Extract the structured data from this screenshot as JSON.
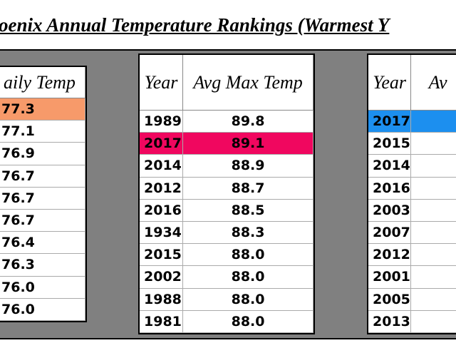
{
  "header": {
    "title": "oenix Annual Temperature Rankings (Warmest Y"
  },
  "tables": [
    {
      "columns": [
        "aily Temp"
      ],
      "rows": [
        [
          "77.3"
        ],
        [
          "77.1"
        ],
        [
          "76.9"
        ],
        [
          "76.7"
        ],
        [
          "76.7"
        ],
        [
          "76.7"
        ],
        [
          "76.4"
        ],
        [
          "76.3"
        ],
        [
          "76.0"
        ],
        [
          "76.0"
        ]
      ]
    },
    {
      "columns": [
        "Year",
        "Avg Max Temp"
      ],
      "rows": [
        [
          "1989",
          "89.8"
        ],
        [
          "2017",
          "89.1"
        ],
        [
          "2014",
          "88.9"
        ],
        [
          "2012",
          "88.7"
        ],
        [
          "2016",
          "88.5"
        ],
        [
          "1934",
          "88.3"
        ],
        [
          "2015",
          "88.0"
        ],
        [
          "2002",
          "88.0"
        ],
        [
          "1988",
          "88.0"
        ],
        [
          "1981",
          "88.0"
        ]
      ]
    },
    {
      "columns": [
        "Year",
        "Av"
      ],
      "rows": [
        [
          "2017",
          ""
        ],
        [
          "2015",
          ""
        ],
        [
          "2014",
          ""
        ],
        [
          "2016",
          ""
        ],
        [
          "2003",
          ""
        ],
        [
          "2007",
          ""
        ],
        [
          "2012",
          ""
        ],
        [
          "2001",
          ""
        ],
        [
          "2005",
          ""
        ],
        [
          "2013",
          ""
        ]
      ]
    }
  ]
}
